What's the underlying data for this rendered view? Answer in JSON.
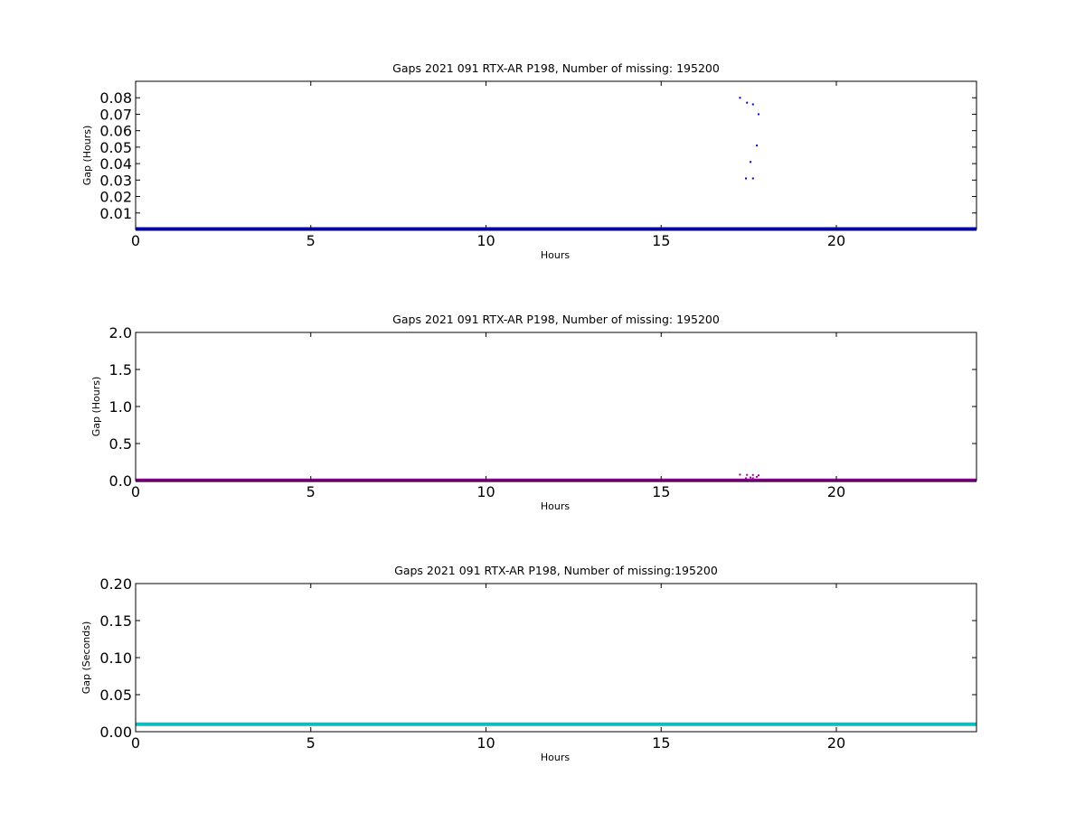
{
  "chart_data": [
    {
      "type": "scatter",
      "title": "Gaps 2021 091 RTX-AR  P198, Number of missing: 195200",
      "xlabel": "Hours",
      "ylabel": "Gap (Hours)",
      "xlim": [
        0,
        24
      ],
      "ylim": [
        0,
        0.09
      ],
      "xticks": [
        0,
        5,
        10,
        15,
        20
      ],
      "yticks": [
        0.01,
        0.02,
        0.03,
        0.04,
        0.05,
        0.06,
        0.07,
        0.08
      ],
      "ytick_labels": [
        "0.01",
        "0.02",
        "0.03",
        "0.04",
        "0.05",
        "0.06",
        "0.07",
        "0.08"
      ],
      "grid": false,
      "color": "#0000cc",
      "baseline": {
        "from": 0,
        "to": 24,
        "y": 0.0003
      },
      "points": [
        {
          "x": 17.25,
          "y": 0.08
        },
        {
          "x": 17.45,
          "y": 0.077
        },
        {
          "x": 17.62,
          "y": 0.076
        },
        {
          "x": 17.78,
          "y": 0.07
        },
        {
          "x": 17.73,
          "y": 0.051
        },
        {
          "x": 17.55,
          "y": 0.041
        },
        {
          "x": 17.42,
          "y": 0.031
        },
        {
          "x": 17.62,
          "y": 0.031
        }
      ]
    },
    {
      "type": "scatter",
      "title": "Gaps 2021 091 RTX-AR  P198, Number of missing: 195200",
      "xlabel": "Hours",
      "ylabel": "Gap (Hours)",
      "xlim": [
        0,
        24
      ],
      "ylim": [
        0,
        2.0
      ],
      "xticks": [
        0,
        5,
        10,
        15,
        20
      ],
      "yticks": [
        0.0,
        0.5,
        1.0,
        1.5,
        2.0
      ],
      "ytick_labels": [
        "0.0",
        "0.5",
        "1.0",
        "1.5",
        "2.0"
      ],
      "grid": false,
      "color": "#990099",
      "baseline": {
        "from": 0,
        "to": 24,
        "y": 0.003
      },
      "points": [
        {
          "x": 17.25,
          "y": 0.08
        },
        {
          "x": 17.45,
          "y": 0.077
        },
        {
          "x": 17.62,
          "y": 0.076
        },
        {
          "x": 17.78,
          "y": 0.07
        },
        {
          "x": 17.73,
          "y": 0.051
        },
        {
          "x": 17.55,
          "y": 0.041
        },
        {
          "x": 17.42,
          "y": 0.031
        },
        {
          "x": 17.62,
          "y": 0.031
        }
      ]
    },
    {
      "type": "scatter",
      "title": "Gaps 2021 091 RTX-AR  P198, Number of missing:195200",
      "xlabel": "Hours",
      "ylabel": "Gap (Seconds)",
      "xlim": [
        0,
        24
      ],
      "ylim": [
        0,
        0.2
      ],
      "xticks": [
        0,
        5,
        10,
        15,
        20
      ],
      "yticks": [
        0.0,
        0.05,
        0.1,
        0.15,
        0.2
      ],
      "ytick_labels": [
        "0.00",
        "0.05",
        "0.10",
        "0.15",
        "0.20"
      ],
      "grid": false,
      "color": "#11bbbb",
      "baseline": {
        "from": 0,
        "to": 24,
        "y": 0.01
      },
      "points": []
    }
  ]
}
